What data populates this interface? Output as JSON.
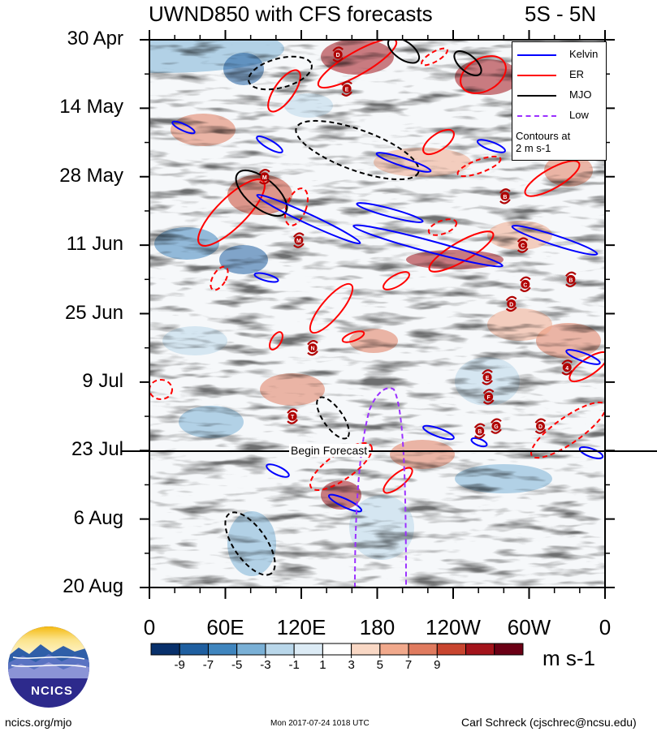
{
  "title": "UWND850 with CFS forecasts",
  "region": "5S - 5N",
  "chart_data": {
    "type": "heatmap",
    "title": "UWND850 with CFS forecasts",
    "subtitle": "5S - 5N",
    "y_tick_labels": [
      "30 Apr",
      "14 May",
      "28 May",
      "11 Jun",
      "25 Jun",
      "9 Jul",
      "23 Jul",
      "6 Aug",
      "20 Aug"
    ],
    "x_tick_labels": [
      "0",
      "60E",
      "120E",
      "180",
      "120W",
      "60W",
      "0"
    ],
    "x_values_deg": [
      0,
      60,
      120,
      180,
      240,
      300,
      360
    ],
    "colorbar": {
      "units": "m s-1",
      "labels": [
        "-9",
        "-7",
        "-5",
        "-3",
        "-1",
        "1",
        "3",
        "5",
        "7",
        "9"
      ],
      "levels": [
        -9,
        -7,
        -5,
        -3,
        -1,
        1,
        3,
        5,
        7,
        9
      ],
      "colors": [
        "#08306b",
        "#1f5fa0",
        "#3f85be",
        "#7ab0d6",
        "#b9d7ea",
        "#dcebf5",
        "#ffffff",
        "#f9d8c5",
        "#f1a98c",
        "#e07b5f",
        "#c8452f",
        "#a3141b",
        "#6b0015"
      ]
    },
    "legend": {
      "placement": "top-right",
      "entries": [
        {
          "name": "Kelvin",
          "color": "#0000ff",
          "dash": false
        },
        {
          "name": "ER",
          "color": "#ff0000",
          "dash": false
        },
        {
          "name": "MJO",
          "color": "#000000",
          "dash": false
        },
        {
          "name": "Low",
          "color": "#9b30ff",
          "dash": true
        }
      ],
      "note_line1": "Contours at",
      "note_line2": "2 m s-1"
    },
    "forecast_label": "Begin Forecast",
    "forecast_start": "23 Jul",
    "storms": [
      {
        "letter": "D",
        "lon": 149,
        "date": "2017-05-03"
      },
      {
        "letter": "E",
        "lon": 156,
        "date": "2017-05-10"
      },
      {
        "letter": "A",
        "lon": 303,
        "date": "2017-05-08"
      },
      {
        "letter": "M",
        "lon": 91,
        "date": "2017-05-28"
      },
      {
        "letter": "B",
        "lon": 281,
        "date": "2017-06-01"
      },
      {
        "letter": "M",
        "lon": 118,
        "date": "2017-06-10"
      },
      {
        "letter": "C",
        "lon": 295,
        "date": "2017-06-11"
      },
      {
        "letter": "B",
        "lon": 333,
        "date": "2017-06-18"
      },
      {
        "letter": "C",
        "lon": 297,
        "date": "2017-06-19"
      },
      {
        "letter": "D",
        "lon": 286,
        "date": "2017-06-23"
      },
      {
        "letter": "N",
        "lon": 129,
        "date": "2017-07-02"
      },
      {
        "letter": "4",
        "lon": 330,
        "date": "2017-07-06"
      },
      {
        "letter": "E",
        "lon": 267,
        "date": "2017-07-08"
      },
      {
        "letter": "F",
        "lon": 268,
        "date": "2017-07-12"
      },
      {
        "letter": "T",
        "lon": 113,
        "date": "2017-07-16"
      },
      {
        "letter": "G",
        "lon": 274,
        "date": "2017-07-18"
      },
      {
        "letter": "B",
        "lon": 261,
        "date": "2017-07-19"
      },
      {
        "letter": "D",
        "lon": 309,
        "date": "2017-07-18"
      }
    ]
  },
  "footer": {
    "logo_text": "NCICS",
    "site": "ncics.org/mjo",
    "timestamp": "Mon 2017-07-24 1018 UTC",
    "author": "Carl Schreck (cjschrec@ncsu.edu)"
  }
}
